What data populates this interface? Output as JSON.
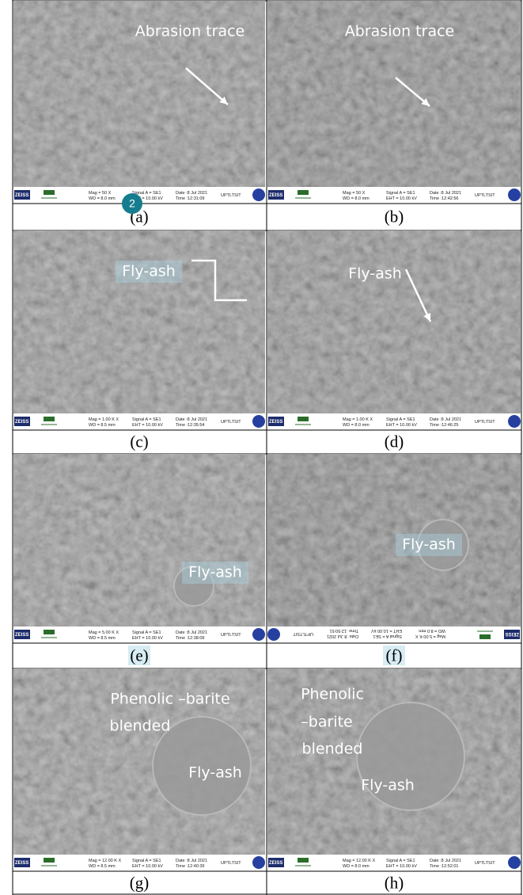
{
  "badge": "2",
  "panels": [
    {
      "caption": "(a)",
      "annotations": [
        "Abrasion trace"
      ],
      "info": [
        "ZEISS",
        "Mag =    50 X",
        "WD =  8.0 mm",
        "Signal A = SE1",
        "EHT = 10.00 kV",
        "Date :8 Jul 2021",
        "Time :12:31:09",
        "UPTLTSIT"
      ]
    },
    {
      "caption": "(b)",
      "annotations": [
        "Abrasion trace"
      ],
      "info": [
        "ZEISS",
        "Mag =    50 X",
        "WD =  8.0 mm",
        "Signal A = SE1",
        "EHT = 10.00 kV",
        "Date :8 Jul 2021",
        "Time :12:42:56",
        "UPTLTSIT"
      ]
    },
    {
      "caption": "(c)",
      "annotations": [
        "Fly-ash"
      ],
      "info": [
        "ZEISS",
        "Mag =  1.00 K X",
        "WD =  8.5 mm",
        "Signal A = SE1",
        "EHT = 10.00 kV",
        "Date :8 Jul 2021",
        "Time :12:35:54",
        "UPTLTSIT"
      ]
    },
    {
      "caption": "(d)",
      "annotations": [
        "Fly-ash"
      ],
      "info": [
        "ZEISS",
        "Mag =  1.00 K X",
        "WD =  8.0 mm",
        "Signal A = SE1",
        "EHT = 10.00 kV",
        "Date :8 Jul 2021",
        "Time :12:46:25",
        "UPTLTSIT"
      ]
    },
    {
      "caption": "(e)",
      "annotations": [
        "Fly-ash"
      ],
      "info": [
        "ZEISS",
        "Mag =  5.00 K X",
        "WD =  8.5 mm",
        "Signal A = SE1",
        "EHT = 10.00 kV",
        "Date :8 Jul 2021",
        "Time :12:38:09",
        "UPTLTSIT"
      ]
    },
    {
      "caption": "(f)",
      "annotations": [
        "Fly-ash"
      ],
      "info": [
        "ZEISS",
        "Mag =  5.00 K X",
        "WD =  8.0 mm",
        "Signal A = SE1",
        "EHT = 10.00 kV",
        "Date :8 Jul 2021",
        "Time :12:50:51",
        "UPTLTSIT"
      ]
    },
    {
      "caption": "(g)",
      "annotations": [
        "Phenolic –barite",
        "blended",
        "Fly-ash"
      ],
      "info": [
        "ZEISS",
        "Mag =  12.00 K X",
        "WD =  8.5 mm",
        "Signal A = SE1",
        "EHT = 10.00 kV",
        "Date :8 Jul 2021",
        "Time :12:40:39",
        "UPTLTSIT"
      ]
    },
    {
      "caption": "(h)",
      "annotations": [
        "Phenolic",
        "–barite",
        "blended",
        "Fly-ash"
      ],
      "info": [
        "ZEISS",
        "Mag =  12.00 K X",
        "WD =  8.0 mm",
        "Signal A = SE1",
        "EHT = 10.00 kV",
        "Date :8 Jul 2021",
        "Time :12:52:01",
        "UPTLTSIT"
      ]
    }
  ]
}
